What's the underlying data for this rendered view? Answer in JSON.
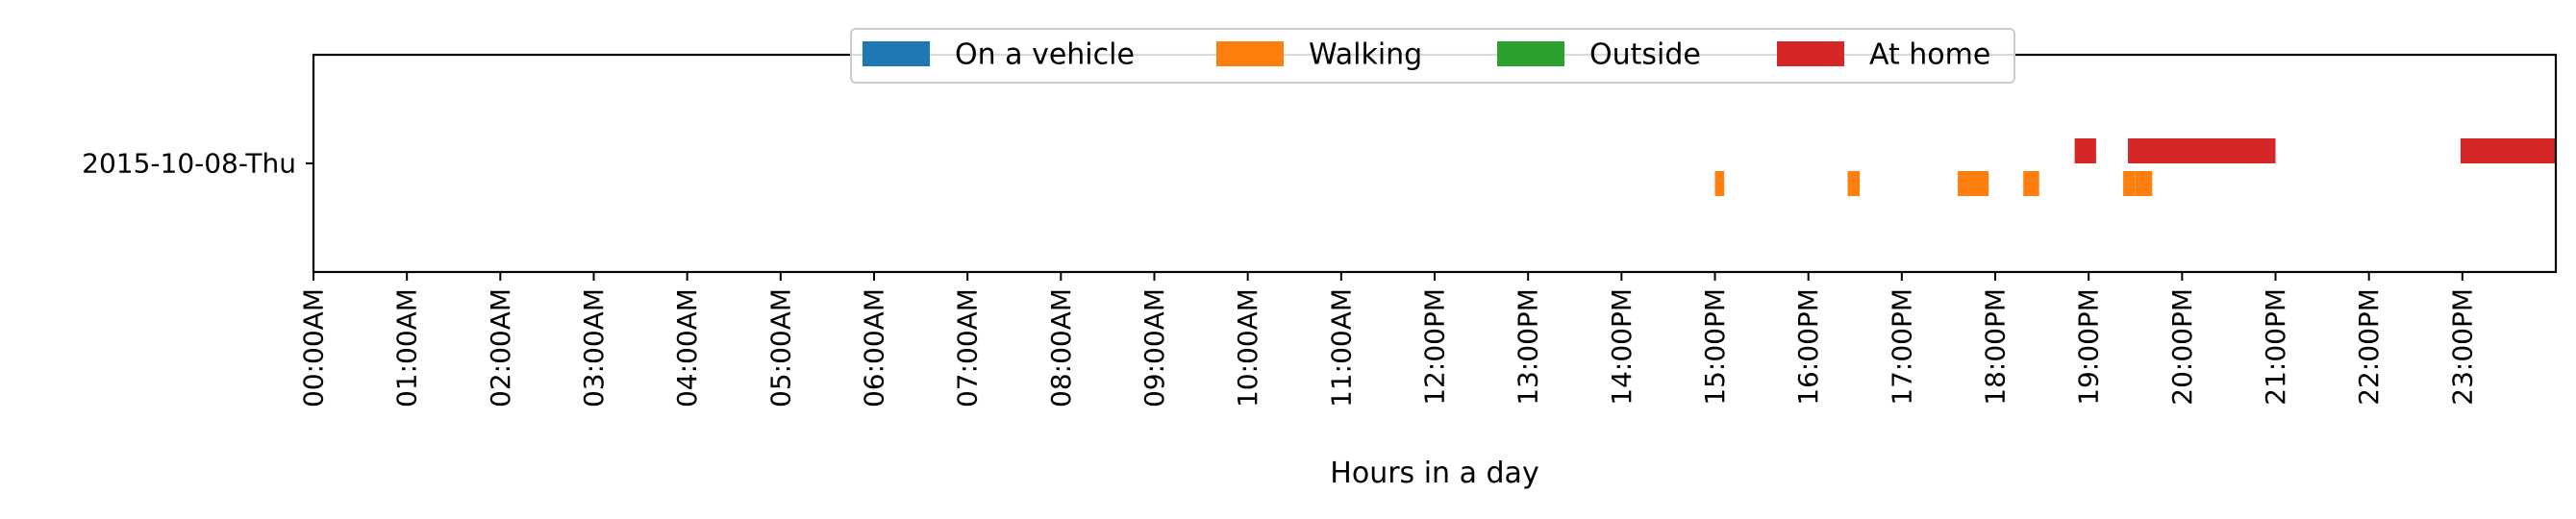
{
  "chart_data": {
    "type": "timeline",
    "title": "",
    "xlabel": "Hours in a day",
    "ylabel": "",
    "xlim": [
      0,
      24
    ],
    "rows": [
      "2015-10-08-Thu"
    ],
    "ticks": [
      {
        "value": 0,
        "label": "00:00AM"
      },
      {
        "value": 1,
        "label": "01:00AM"
      },
      {
        "value": 2,
        "label": "02:00AM"
      },
      {
        "value": 3,
        "label": "03:00AM"
      },
      {
        "value": 4,
        "label": "04:00AM"
      },
      {
        "value": 5,
        "label": "05:00AM"
      },
      {
        "value": 6,
        "label": "06:00AM"
      },
      {
        "value": 7,
        "label": "07:00AM"
      },
      {
        "value": 8,
        "label": "08:00AM"
      },
      {
        "value": 9,
        "label": "09:00AM"
      },
      {
        "value": 10,
        "label": "10:00AM"
      },
      {
        "value": 11,
        "label": "11:00AM"
      },
      {
        "value": 12,
        "label": "12:00PM"
      },
      {
        "value": 13,
        "label": "13:00PM"
      },
      {
        "value": 14,
        "label": "14:00PM"
      },
      {
        "value": 15,
        "label": "15:00PM"
      },
      {
        "value": 16,
        "label": "16:00PM"
      },
      {
        "value": 17,
        "label": "17:00PM"
      },
      {
        "value": 18,
        "label": "18:00PM"
      },
      {
        "value": 19,
        "label": "19:00PM"
      },
      {
        "value": 20,
        "label": "20:00PM"
      },
      {
        "value": 21,
        "label": "21:00PM"
      },
      {
        "value": 22,
        "label": "22:00PM"
      },
      {
        "value": 23,
        "label": "23:00PM"
      }
    ],
    "legend": {
      "position": "top-center",
      "entries": [
        {
          "key": "vehicle",
          "label": "On a vehicle",
          "color": "#1f77b4"
        },
        {
          "key": "walking",
          "label": "Walking",
          "color": "#ff7f0e"
        },
        {
          "key": "outside",
          "label": "Outside",
          "color": "#2ca02c"
        },
        {
          "key": "home",
          "label": "At home",
          "color": "#d62728"
        }
      ]
    },
    "series": [
      {
        "key": "vehicle",
        "name": "On a vehicle",
        "row": "2015-10-08-Thu",
        "intervals": []
      },
      {
        "key": "walking",
        "name": "Walking",
        "row": "2015-10-08-Thu",
        "intervals": [
          [
            15.0,
            15.1
          ],
          [
            16.42,
            16.55
          ],
          [
            17.6,
            17.93
          ],
          [
            18.3,
            18.47
          ],
          [
            19.37,
            19.5
          ],
          [
            19.5,
            19.68
          ]
        ]
      },
      {
        "key": "outside",
        "name": "Outside",
        "row": "2015-10-08-Thu",
        "intervals": []
      },
      {
        "key": "home",
        "name": "At home",
        "row": "2015-10-08-Thu",
        "intervals": [
          [
            18.85,
            19.08
          ],
          [
            19.42,
            21.0
          ],
          [
            22.98,
            24.0
          ]
        ]
      }
    ]
  }
}
